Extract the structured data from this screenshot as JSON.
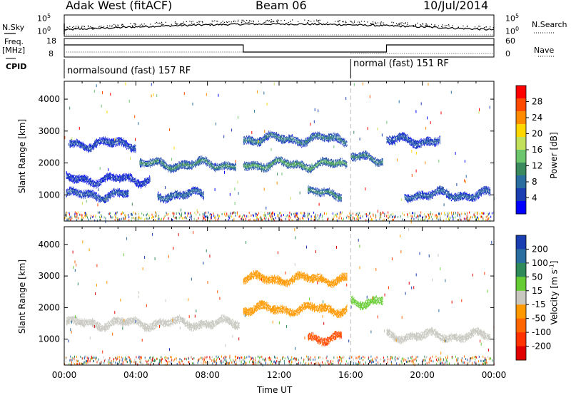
{
  "header": {
    "station": "Adak West (fitACF)",
    "beam": "Beam 06",
    "date": "10/Jul/2014"
  },
  "top_panels": {
    "nsky_label": "N.Sky",
    "nsearch_label": "N.Search",
    "nsky_ticks": [
      "10^5",
      "10^0"
    ],
    "nsearch_ticks": [
      "10^5",
      "10^0"
    ],
    "freq_label_1": "Freq.",
    "freq_label_2": "[MHz]",
    "freq_ticks": [
      "18",
      "8"
    ],
    "nave_ticks": [
      "60",
      "0"
    ],
    "nave_label": "Nave",
    "cpid_label": "CPID",
    "cpid_segments": [
      {
        "label": "normalsound (fast) 157 RF",
        "start_hour": 0,
        "end_hour": 16
      },
      {
        "label": "normal (fast) 151 RF",
        "start_hour": 16,
        "end_hour": 24
      }
    ]
  },
  "chart_data": [
    {
      "type": "heatmap",
      "name": "power",
      "ylabel": "Slant Range [km]",
      "xlabel": "",
      "xlim": [
        0,
        24
      ],
      "ylim": [
        180,
        4560
      ],
      "yticks": [
        1000,
        2000,
        3000,
        4000
      ],
      "colorbar": {
        "label": "Power [dB]",
        "ticks": [
          "28",
          "24",
          "20",
          "16",
          "12",
          "8",
          "4"
        ],
        "colors": [
          "#ff0000",
          "#ff4a00",
          "#ff8c00",
          "#ffd700",
          "#c2e05a",
          "#6cc76c",
          "#3a8a5e",
          "#2a6ea0",
          "#1a3fb0",
          "#0000ff"
        ]
      },
      "features": [
        {
          "desc": "band",
          "t_start": 0.1,
          "t_end": 3.6,
          "range_km": 1000,
          "level": 6
        },
        {
          "desc": "band",
          "t_start": 0.1,
          "t_end": 4.8,
          "range_km": 1480,
          "level": 4
        },
        {
          "desc": "band",
          "t_start": 0.3,
          "t_end": 4.0,
          "range_km": 2600,
          "level": 5
        },
        {
          "desc": "band",
          "t_start": 4.2,
          "t_end": 9.6,
          "range_km": 1950,
          "level": 12
        },
        {
          "desc": "band",
          "t_start": 5.2,
          "t_end": 7.8,
          "range_km": 1000,
          "level": 8
        },
        {
          "desc": "band",
          "t_start": 10.0,
          "t_end": 15.8,
          "range_km": 1950,
          "level": 14
        },
        {
          "desc": "band",
          "t_start": 10.0,
          "t_end": 15.8,
          "range_km": 2750,
          "level": 10
        },
        {
          "desc": "band",
          "t_start": 13.6,
          "t_end": 15.5,
          "range_km": 1050,
          "level": 12
        },
        {
          "desc": "band",
          "t_start": 16.0,
          "t_end": 17.8,
          "range_km": 2150,
          "level": 11
        },
        {
          "desc": "band",
          "t_start": 18.0,
          "t_end": 21.0,
          "range_km": 2700,
          "level": 6
        },
        {
          "desc": "band",
          "t_start": 19.0,
          "t_end": 23.8,
          "range_km": 1000,
          "level": 7
        }
      ]
    },
    {
      "type": "heatmap",
      "name": "velocity",
      "ylabel": "Slant Range [km]",
      "xlabel": "Time UT",
      "xlim": [
        0,
        24
      ],
      "ylim": [
        180,
        4560
      ],
      "yticks": [
        1000,
        2000,
        3000,
        4000
      ],
      "xticks": [
        "00:00",
        "04:00",
        "08:00",
        "12:00",
        "16:00",
        "20:00",
        "00:00"
      ],
      "colorbar": {
        "label": "Velocity [m s^-1]",
        "ticks": [
          "200",
          "100",
          "50",
          "15",
          "-15",
          "-50",
          "-100",
          "-200"
        ],
        "colors": [
          "#1a3fb0",
          "#2a6ea0",
          "#2f8a5a",
          "#66cc33",
          "#c8c8c0",
          "#ff9900",
          "#ff6600",
          "#ff3300",
          "#e00000"
        ]
      },
      "features": [
        {
          "desc": "ground scatter",
          "t_start": 0.1,
          "t_end": 9.8,
          "range_km": 1500,
          "velocity": 0
        },
        {
          "desc": "band",
          "t_start": 10.0,
          "t_end": 15.8,
          "range_km": 1950,
          "velocity": -20
        },
        {
          "desc": "band",
          "t_start": 10.0,
          "t_end": 15.8,
          "range_km": 2900,
          "velocity": -40
        },
        {
          "desc": "band",
          "t_start": 13.6,
          "t_end": 15.5,
          "range_km": 1050,
          "velocity": -100
        },
        {
          "desc": "band",
          "t_start": 16.0,
          "t_end": 17.8,
          "range_km": 2200,
          "velocity": 30
        },
        {
          "desc": "ground scatter",
          "t_start": 18.0,
          "t_end": 23.8,
          "range_km": 1100,
          "velocity": 0
        }
      ]
    }
  ]
}
